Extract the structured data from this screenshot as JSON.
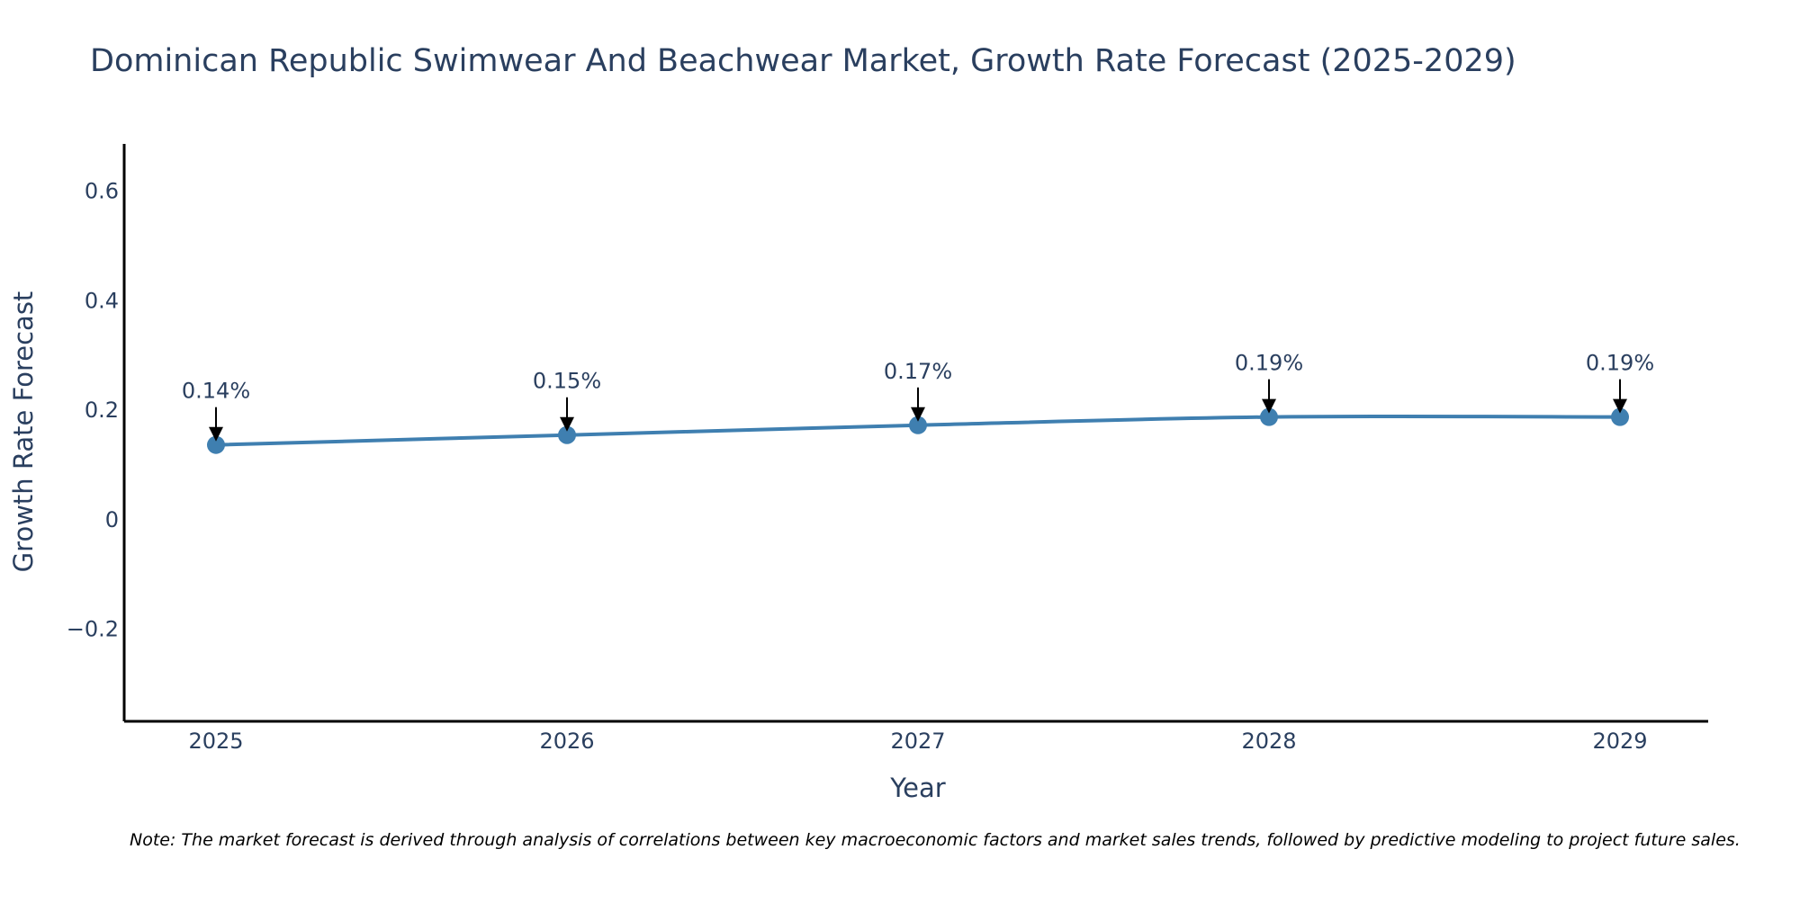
{
  "chart_data": {
    "type": "line",
    "title": "Dominican Republic Swimwear And Beachwear Market, Growth Rate Forecast (2025-2029)",
    "xlabel": "Year",
    "ylabel": "Growth Rate Forecast",
    "categories": [
      "2025",
      "2026",
      "2027",
      "2028",
      "2029"
    ],
    "series": [
      {
        "name": "Growth Rate Forecast",
        "values": [
          0.135,
          0.153,
          0.171,
          0.186,
          0.186
        ],
        "labels": [
          "0.14%",
          "0.15%",
          "0.17%",
          "0.19%",
          "0.19%"
        ]
      }
    ],
    "ylim": [
      -0.37,
      0.685
    ],
    "yticks": [
      -0.2,
      0,
      0.2,
      0.4,
      0.6
    ],
    "ytick_labels": [
      "−0.2",
      "0",
      "0.2",
      "0.4",
      "0.6"
    ],
    "grid": false,
    "legend": "none",
    "colors": {
      "line": "#3f7fb0",
      "marker": "#3f7fb0",
      "axis": "#000000",
      "text": "#2a3f5f",
      "annotation_arrow": "#000000"
    }
  },
  "note": "Note: The market forecast is derived through analysis of correlations between key macroeconomic factors and market sales trends, followed by predictive modeling to project future sales."
}
